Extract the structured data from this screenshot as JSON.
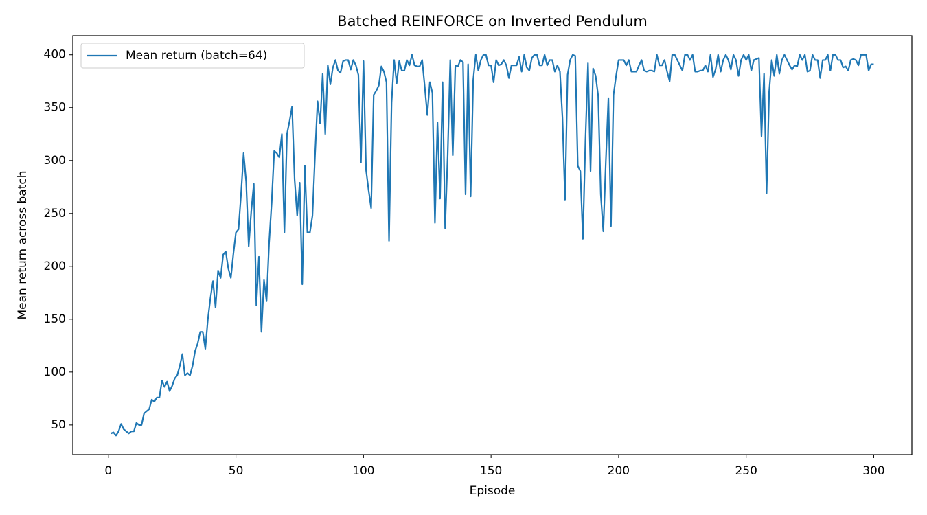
{
  "chart_data": {
    "type": "line",
    "title": "Batched REINFORCE on Inverted Pendulum",
    "xlabel": "Episode",
    "ylabel": "Mean return across batch",
    "x": [
      1,
      2,
      3,
      4,
      5,
      6,
      7,
      8,
      9,
      10,
      11,
      12,
      13,
      14,
      15,
      16,
      17,
      18,
      19,
      20,
      21,
      22,
      23,
      24,
      25,
      26,
      27,
      28,
      29,
      30,
      31,
      32,
      33,
      34,
      35,
      36,
      37,
      38,
      39,
      40,
      41,
      42,
      43,
      44,
      45,
      46,
      47,
      48,
      49,
      50,
      51,
      52,
      53,
      54,
      55,
      56,
      57,
      58,
      59,
      60,
      61,
      62,
      63,
      64,
      65,
      66,
      67,
      68,
      69,
      70,
      71,
      72,
      73,
      74,
      75,
      76,
      77,
      78,
      79,
      80,
      81,
      82,
      83,
      84,
      85,
      86,
      87,
      88,
      89,
      90,
      91,
      92,
      93,
      94,
      95,
      96,
      97,
      98,
      99,
      100,
      101,
      102,
      103,
      104,
      105,
      106,
      107,
      108,
      109,
      110,
      111,
      112,
      113,
      114,
      115,
      116,
      117,
      118,
      119,
      120,
      121,
      122,
      123,
      124,
      125,
      126,
      127,
      128,
      129,
      130,
      131,
      132,
      133,
      134,
      135,
      136,
      137,
      138,
      139,
      140,
      141,
      142,
      143,
      144,
      145,
      146,
      147,
      148,
      149,
      150,
      151,
      152,
      153,
      154,
      155,
      156,
      157,
      158,
      159,
      160,
      161,
      162,
      163,
      164,
      165,
      166,
      167,
      168,
      169,
      170,
      171,
      172,
      173,
      174,
      175,
      176,
      177,
      178,
      179,
      180,
      181,
      182,
      183,
      184,
      185,
      186,
      187,
      188,
      189,
      190,
      191,
      192,
      193,
      194,
      195,
      196,
      197,
      198,
      199,
      200,
      201,
      202,
      203,
      204,
      205,
      206,
      207,
      208,
      209,
      210,
      211,
      212,
      213,
      214,
      215,
      216,
      217,
      218,
      219,
      220,
      221,
      222,
      223,
      224,
      225,
      226,
      227,
      228,
      229,
      230,
      231,
      232,
      233,
      234,
      235,
      236,
      237,
      238,
      239,
      240,
      241,
      242,
      243,
      244,
      245,
      246,
      247,
      248,
      249,
      250,
      251,
      252,
      253,
      254,
      255,
      256,
      257,
      258,
      259,
      260,
      261,
      262,
      263,
      264,
      265,
      266,
      267,
      268,
      269,
      270,
      271,
      272,
      273,
      274,
      275,
      276,
      277,
      278,
      279,
      280,
      281,
      282,
      283,
      284,
      285,
      286,
      287,
      288,
      289,
      290,
      291,
      292,
      293,
      294,
      295,
      296,
      297,
      298,
      299,
      300
    ],
    "series": [
      {
        "name": "Mean return (batch=64)",
        "color": "#1f77b4",
        "values": [
          42,
          43,
          40,
          44,
          51,
          46,
          44,
          42,
          44,
          44,
          52,
          50,
          50,
          61,
          63,
          65,
          74,
          72,
          76,
          76,
          92,
          86,
          91,
          82,
          87,
          94,
          97,
          106,
          117,
          97,
          99,
          97,
          106,
          120,
          127,
          138,
          138,
          122,
          150,
          170,
          186,
          161,
          196,
          189,
          211,
          214,
          198,
          189,
          212,
          232,
          235,
          268,
          307,
          280,
          219,
          252,
          278,
          163,
          209,
          138,
          187,
          167,
          222,
          260,
          309,
          307,
          303,
          325,
          232,
          325,
          337,
          351,
          282,
          248,
          279,
          183,
          295,
          232,
          232,
          248,
          305,
          356,
          335,
          382,
          325,
          390,
          372,
          388,
          395,
          385,
          383,
          394,
          395,
          395,
          386,
          395,
          390,
          381,
          298,
          394,
          291,
          272,
          255,
          362,
          366,
          371,
          389,
          384,
          374,
          224,
          355,
          395,
          373,
          394,
          385,
          385,
          395,
          390,
          400,
          390,
          389,
          389,
          395,
          370,
          343,
          374,
          364,
          241,
          336,
          264,
          374,
          236,
          305,
          395,
          305,
          390,
          389,
          395,
          393,
          268,
          391,
          266,
          376,
          400,
          385,
          395,
          400,
          400,
          390,
          390,
          374,
          395,
          390,
          391,
          395,
          390,
          378,
          390,
          390,
          390,
          398,
          384,
          400,
          388,
          385,
          397,
          400,
          400,
          390,
          390,
          400,
          390,
          395,
          395,
          384,
          390,
          384,
          340,
          263,
          381,
          395,
          400,
          399,
          295,
          290,
          226,
          320,
          392,
          290,
          387,
          380,
          361,
          268,
          233,
          300,
          359,
          238,
          362,
          380,
          395,
          395,
          395,
          390,
          395,
          384,
          384,
          384,
          390,
          395,
          385,
          384,
          385,
          385,
          384,
          400,
          390,
          390,
          395,
          384,
          375,
          400,
          400,
          395,
          390,
          385,
          400,
          400,
          395,
          400,
          384,
          384,
          385,
          385,
          390,
          384,
          400,
          379,
          386,
          400,
          384,
          395,
          400,
          395,
          386,
          400,
          395,
          380,
          395,
          400,
          395,
          400,
          385,
          395,
          396,
          397,
          323,
          382,
          269,
          365,
          395,
          380,
          400,
          382,
          395,
          400,
          395,
          390,
          386,
          390,
          389,
          400,
          395,
          400,
          384,
          385,
          400,
          395,
          395,
          378,
          395,
          395,
          400,
          385,
          400,
          400,
          395,
          395,
          388,
          389,
          385,
          395,
          396,
          395,
          390,
          400,
          400,
          400,
          385,
          391,
          391
        ]
      }
    ],
    "xlim": [
      -13.95,
      314.95
    ],
    "xticks": [
      0,
      50,
      100,
      150,
      200,
      250,
      300
    ],
    "ylim": [
      22,
      418
    ],
    "yticks": [
      50,
      100,
      150,
      200,
      250,
      300,
      350,
      400
    ],
    "grid": false,
    "legend": "upper left"
  }
}
